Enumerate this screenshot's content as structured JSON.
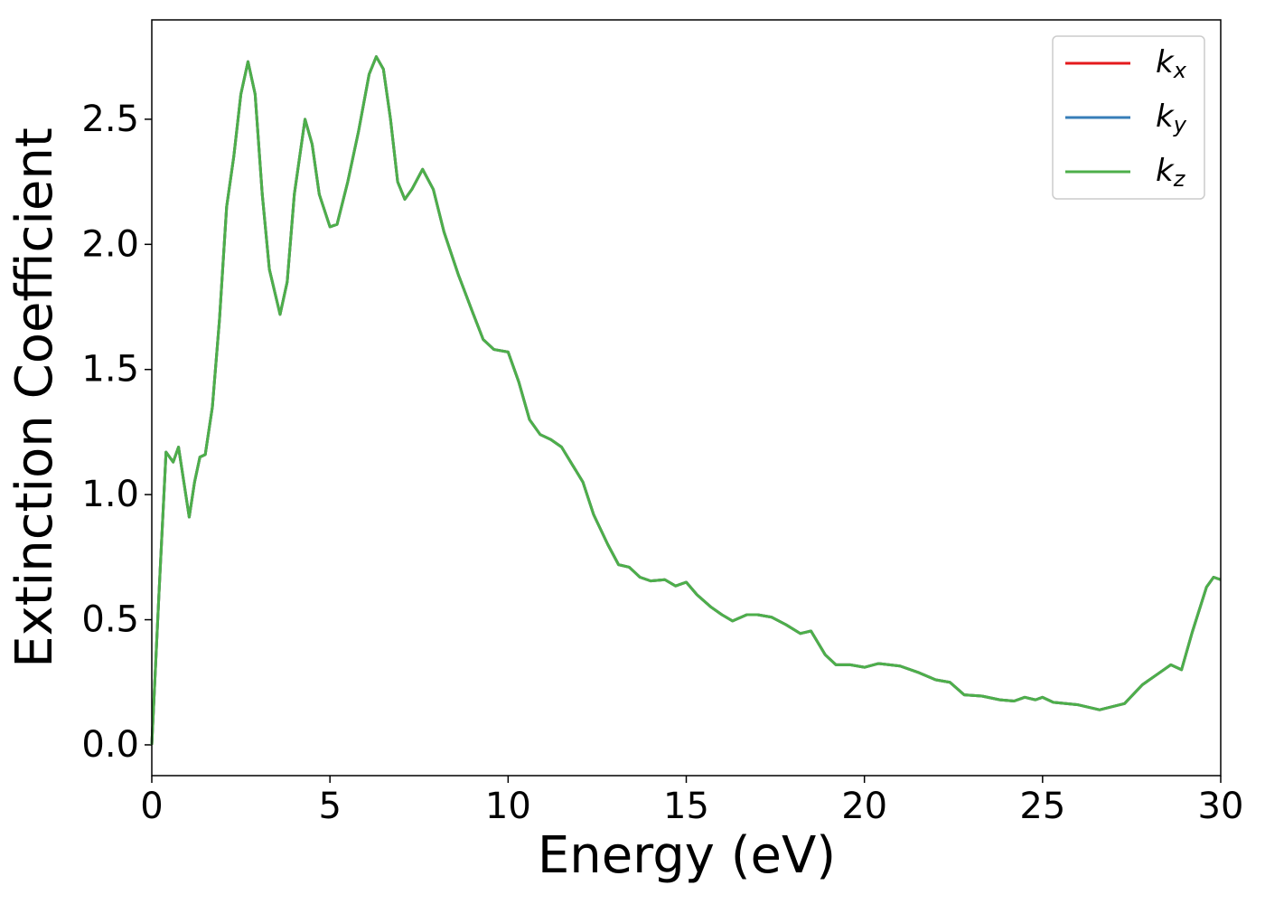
{
  "chart_data": {
    "type": "line",
    "xlabel": "Energy (eV)",
    "ylabel": "Extinction Coefficient",
    "x": [
      0,
      0.2,
      0.4,
      0.6,
      0.75,
      0.9,
      1.05,
      1.2,
      1.35,
      1.5,
      1.7,
      1.9,
      2.1,
      2.3,
      2.5,
      2.7,
      2.9,
      3.1,
      3.3,
      3.6,
      3.8,
      4.0,
      4.3,
      4.5,
      4.7,
      5.0,
      5.2,
      5.5,
      5.8,
      6.1,
      6.3,
      6.5,
      6.7,
      6.9,
      7.1,
      7.3,
      7.6,
      7.9,
      8.2,
      8.6,
      9.0,
      9.3,
      9.6,
      10.0,
      10.3,
      10.6,
      10.9,
      11.2,
      11.5,
      11.8,
      12.1,
      12.4,
      12.8,
      13.1,
      13.4,
      13.7,
      14.0,
      14.4,
      14.7,
      15.0,
      15.3,
      15.7,
      16.0,
      16.3,
      16.7,
      17.0,
      17.4,
      17.8,
      18.2,
      18.5,
      18.9,
      19.2,
      19.6,
      20.0,
      20.4,
      21.0,
      21.5,
      22.0,
      22.4,
      22.8,
      23.3,
      23.8,
      24.2,
      24.5,
      24.8,
      25.0,
      25.3,
      26.0,
      26.6,
      27.3,
      27.8,
      28.3,
      28.6,
      28.9,
      29.2,
      29.6,
      29.8,
      30.0
    ],
    "series": [
      {
        "name": "kx",
        "color": "#e41a1c",
        "values": [
          0,
          0.6,
          1.17,
          1.13,
          1.19,
          1.05,
          0.91,
          1.05,
          1.15,
          1.16,
          1.35,
          1.7,
          2.15,
          2.35,
          2.6,
          2.73,
          2.6,
          2.2,
          1.9,
          1.72,
          1.85,
          2.2,
          2.5,
          2.4,
          2.2,
          2.07,
          2.08,
          2.25,
          2.45,
          2.68,
          2.75,
          2.7,
          2.5,
          2.25,
          2.18,
          2.22,
          2.3,
          2.22,
          2.05,
          1.88,
          1.73,
          1.62,
          1.58,
          1.57,
          1.45,
          1.3,
          1.24,
          1.22,
          1.19,
          1.12,
          1.05,
          0.92,
          0.8,
          0.72,
          0.71,
          0.67,
          0.655,
          0.66,
          0.635,
          0.65,
          0.6,
          0.55,
          0.52,
          0.495,
          0.52,
          0.52,
          0.51,
          0.48,
          0.445,
          0.455,
          0.36,
          0.32,
          0.32,
          0.31,
          0.325,
          0.315,
          0.29,
          0.26,
          0.25,
          0.2,
          0.195,
          0.18,
          0.175,
          0.19,
          0.18,
          0.19,
          0.17,
          0.16,
          0.14,
          0.165,
          0.24,
          0.29,
          0.32,
          0.3,
          0.45,
          0.63,
          0.67,
          0.66
        ]
      },
      {
        "name": "ky",
        "color": "#377eb8",
        "values": [
          0,
          0.6,
          1.17,
          1.13,
          1.19,
          1.05,
          0.91,
          1.05,
          1.15,
          1.16,
          1.35,
          1.7,
          2.15,
          2.35,
          2.6,
          2.73,
          2.6,
          2.2,
          1.9,
          1.72,
          1.85,
          2.2,
          2.5,
          2.4,
          2.2,
          2.07,
          2.08,
          2.25,
          2.45,
          2.68,
          2.75,
          2.7,
          2.5,
          2.25,
          2.18,
          2.22,
          2.3,
          2.22,
          2.05,
          1.88,
          1.73,
          1.62,
          1.58,
          1.57,
          1.45,
          1.3,
          1.24,
          1.22,
          1.19,
          1.12,
          1.05,
          0.92,
          0.8,
          0.72,
          0.71,
          0.67,
          0.655,
          0.66,
          0.635,
          0.65,
          0.6,
          0.55,
          0.52,
          0.495,
          0.52,
          0.52,
          0.51,
          0.48,
          0.445,
          0.455,
          0.36,
          0.32,
          0.32,
          0.31,
          0.325,
          0.315,
          0.29,
          0.26,
          0.25,
          0.2,
          0.195,
          0.18,
          0.175,
          0.19,
          0.18,
          0.19,
          0.17,
          0.16,
          0.14,
          0.165,
          0.24,
          0.29,
          0.32,
          0.3,
          0.45,
          0.63,
          0.67,
          0.66
        ]
      },
      {
        "name": "kz",
        "color": "#4daf4a",
        "values": [
          0,
          0.6,
          1.17,
          1.13,
          1.19,
          1.05,
          0.91,
          1.05,
          1.15,
          1.16,
          1.35,
          1.7,
          2.15,
          2.35,
          2.6,
          2.73,
          2.6,
          2.2,
          1.9,
          1.72,
          1.85,
          2.2,
          2.5,
          2.4,
          2.2,
          2.07,
          2.08,
          2.25,
          2.45,
          2.68,
          2.75,
          2.7,
          2.5,
          2.25,
          2.18,
          2.22,
          2.3,
          2.22,
          2.05,
          1.88,
          1.73,
          1.62,
          1.58,
          1.57,
          1.45,
          1.3,
          1.24,
          1.22,
          1.19,
          1.12,
          1.05,
          0.92,
          0.8,
          0.72,
          0.71,
          0.67,
          0.655,
          0.66,
          0.635,
          0.65,
          0.6,
          0.55,
          0.52,
          0.495,
          0.52,
          0.52,
          0.51,
          0.48,
          0.445,
          0.455,
          0.36,
          0.32,
          0.32,
          0.31,
          0.325,
          0.315,
          0.29,
          0.26,
          0.25,
          0.2,
          0.195,
          0.18,
          0.175,
          0.19,
          0.18,
          0.19,
          0.17,
          0.16,
          0.14,
          0.165,
          0.24,
          0.29,
          0.32,
          0.3,
          0.45,
          0.63,
          0.67,
          0.66
        ]
      }
    ],
    "xlim": [
      0,
      30
    ],
    "xticks": [
      0,
      5,
      10,
      15,
      20,
      25,
      30
    ],
    "ylim": [
      -0.123,
      2.897
    ],
    "yticks": [
      {
        "value": 0,
        "label": "0.0"
      },
      0.5,
      {
        "value": 1,
        "label": "1.0"
      },
      1.5,
      {
        "value": 2,
        "label": "2.0"
      },
      2.5
    ],
    "grid": false,
    "legend": "upper right"
  }
}
